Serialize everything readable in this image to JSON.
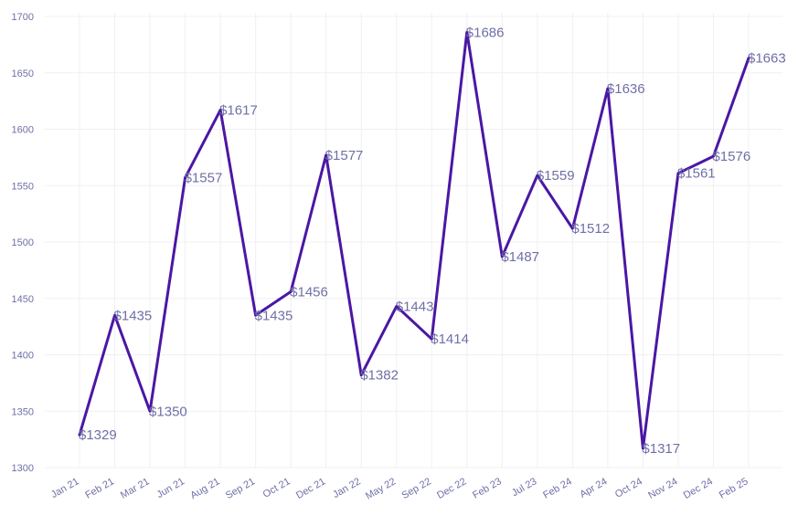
{
  "chart_data": {
    "type": "line",
    "title": "",
    "xlabel": "",
    "ylabel": "",
    "categories": [
      "Jan 21",
      "Feb 21",
      "Mar 21",
      "Jun 21",
      "Aug 21",
      "Sep 21",
      "Oct 21",
      "Dec 21",
      "Jan 22",
      "May 22",
      "Sep 22",
      "Dec 22",
      "Feb 23",
      "Jul 23",
      "Feb 24",
      "Apr 24",
      "Oct 24",
      "Nov 24",
      "Dec 24",
      "Feb 25"
    ],
    "values": [
      1329,
      1435,
      1350,
      1557,
      1617,
      1435,
      1456,
      1577,
      1382,
      1443,
      1414,
      1686,
      1487,
      1559,
      1512,
      1636,
      1317,
      1561,
      1576,
      1663
    ],
    "data_labels": [
      "$1329",
      "$1435",
      "$1350",
      "$1557",
      "$1617",
      "$1435",
      "$1456",
      "$1577",
      "$1382",
      "$1443",
      "$1414",
      "$1686",
      "$1487",
      "$1559",
      "$1512",
      "$1636",
      "$1317",
      "$1561",
      "$1576",
      "$1663"
    ],
    "ylim": [
      1300,
      1700
    ],
    "yticks": [
      "1300",
      "1350",
      "1400",
      "1450",
      "1500",
      "1550",
      "1600",
      "1650",
      "1700"
    ],
    "grid": true,
    "line_color": "#4a17a4",
    "label_color": "#6f6fa8",
    "grid_color": "#f0f0f3"
  }
}
